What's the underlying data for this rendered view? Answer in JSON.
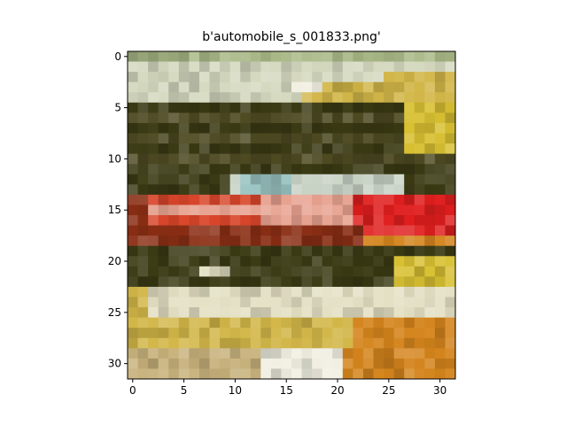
{
  "figure": {
    "title": "b'automobile_s_001833.png'"
  },
  "image": {
    "grid_size": 32,
    "palette": {
      "sky_sage": "#a9b886",
      "sky_pale": "#d5d9bf",
      "dark_olive": "#4d4a22",
      "deep_olive": "#3a3a14",
      "yellow": "#d8c032",
      "silver": "#c9d3c6",
      "teal": "#9ac3c1",
      "red": "#d8452a",
      "pink": "#e7a18f",
      "brown_red": "#8a2e14",
      "bright_red": "#e01e1e",
      "cream": "#e4e0c4",
      "gold": "#d2b648",
      "orange": "#d4841c",
      "tan": "#c8b27c",
      "white": "#f1efe2"
    }
  },
  "chart_data": {
    "type": "heatmap",
    "title": "b'automobile_s_001833.png'",
    "xlabel": "",
    "ylabel": "",
    "xlim": [
      -0.5,
      31.5
    ],
    "ylim": [
      31.5,
      -0.5
    ],
    "xticks": [
      0,
      5,
      10,
      15,
      20,
      25,
      30
    ],
    "yticks": [
      0,
      5,
      10,
      15,
      20,
      25,
      30
    ],
    "grid": false,
    "legend": "none"
  }
}
